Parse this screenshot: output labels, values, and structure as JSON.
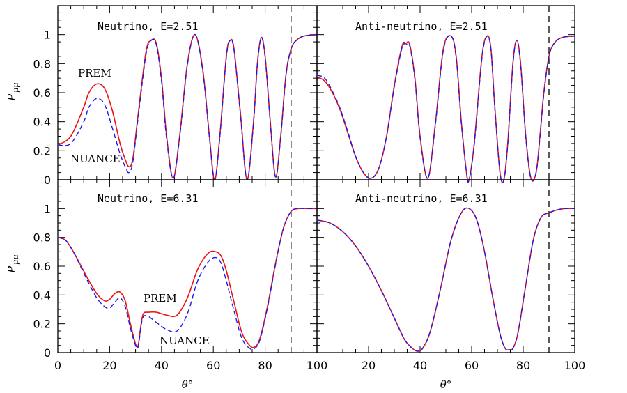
{
  "chart_data": [
    {
      "type": "line",
      "title": "Neutrino, E=2.51",
      "xlabel": "",
      "ylabel": "P_μμ",
      "xlim": [
        0,
        100
      ],
      "ylim": [
        0,
        1.2
      ],
      "yticks": [
        "0",
        "0.2",
        "0.4",
        "0.6",
        "0.8",
        "1"
      ],
      "xticks": [],
      "vline_x": 90,
      "annotations": [
        {
          "text": "PREM"
        },
        {
          "text": "NUANCE"
        }
      ],
      "series": [
        {
          "name": "PREM",
          "color": "#ee1111",
          "style": "solid",
          "x": [
            0,
            5,
            10,
            12,
            15,
            18,
            21,
            24,
            26,
            27.5,
            29,
            31,
            34,
            36,
            38,
            40,
            42,
            44.5,
            47,
            50,
            53,
            56,
            58.5,
            60.5,
            62.5,
            65,
            66.5,
            68,
            70.5,
            73,
            75.5,
            77,
            78.5,
            80,
            82,
            84,
            86,
            88,
            90,
            92,
            95,
            100
          ],
          "y": [
            0.24,
            0.3,
            0.5,
            0.6,
            0.66,
            0.63,
            0.48,
            0.25,
            0.14,
            0.09,
            0.15,
            0.45,
            0.88,
            0.96,
            0.94,
            0.7,
            0.3,
            0.01,
            0.3,
            0.8,
            1.0,
            0.75,
            0.3,
            0.0,
            0.3,
            0.85,
            0.96,
            0.9,
            0.45,
            0.0,
            0.4,
            0.8,
            0.98,
            0.85,
            0.4,
            0.02,
            0.3,
            0.72,
            0.9,
            0.96,
            0.99,
            1.0
          ]
        },
        {
          "name": "NUANCE",
          "color": "#1a1aee",
          "style": "dashed",
          "x": [
            0,
            5,
            10,
            12,
            15,
            18,
            21,
            24,
            26,
            27.5,
            29,
            31,
            34,
            36,
            38,
            40,
            42,
            44.5,
            47,
            50,
            53,
            56,
            58.5,
            60.5,
            62.5,
            65,
            66.5,
            68,
            70.5,
            73,
            75.5,
            77,
            78.5,
            80,
            82,
            84,
            86,
            88,
            90,
            92,
            95,
            100
          ],
          "y": [
            0.24,
            0.25,
            0.4,
            0.5,
            0.56,
            0.52,
            0.36,
            0.18,
            0.09,
            0.05,
            0.13,
            0.43,
            0.86,
            0.96,
            0.93,
            0.68,
            0.28,
            0.01,
            0.29,
            0.79,
            1.0,
            0.74,
            0.29,
            0.0,
            0.29,
            0.84,
            0.96,
            0.89,
            0.44,
            0.0,
            0.39,
            0.79,
            0.98,
            0.84,
            0.39,
            0.02,
            0.29,
            0.71,
            0.9,
            0.96,
            0.99,
            1.0
          ]
        }
      ]
    },
    {
      "type": "line",
      "title": "Anti-neutrino, E=2.51",
      "xlabel": "",
      "ylabel": "",
      "xlim": [
        0,
        100
      ],
      "ylim": [
        0,
        1.2
      ],
      "yticks": [],
      "xticks": [],
      "vline_x": 90,
      "annotations": [],
      "series": [
        {
          "name": "PREM",
          "color": "#ee1111",
          "style": "solid",
          "x": [
            0,
            3,
            6,
            9,
            12,
            15,
            18,
            21,
            24,
            27,
            30,
            33,
            34.5,
            36,
            38,
            40,
            43,
            46,
            49,
            52,
            54,
            56,
            58,
            59,
            61,
            64,
            66,
            67.5,
            69,
            71,
            72.5,
            74,
            76,
            77.5,
            79,
            81,
            83,
            85,
            86.5,
            88,
            90,
            92,
            95,
            100
          ],
          "y": [
            0.71,
            0.68,
            0.6,
            0.48,
            0.32,
            0.16,
            0.05,
            0.01,
            0.08,
            0.3,
            0.65,
            0.92,
            0.94,
            0.93,
            0.7,
            0.3,
            0.01,
            0.4,
            0.9,
            0.99,
            0.85,
            0.4,
            0.05,
            0.0,
            0.25,
            0.85,
            0.99,
            0.9,
            0.5,
            0.05,
            0.0,
            0.25,
            0.8,
            0.96,
            0.8,
            0.3,
            0.01,
            0.05,
            0.3,
            0.6,
            0.85,
            0.94,
            0.98,
            0.99
          ]
        },
        {
          "name": "NUANCE",
          "color": "#1a1aee",
          "style": "dashed",
          "x": [
            0,
            3,
            6,
            9,
            12,
            15,
            18,
            21,
            24,
            27,
            30,
            33,
            34.5,
            36,
            38,
            40,
            43,
            46,
            49,
            52,
            54,
            56,
            58,
            59,
            61,
            64,
            66,
            67.5,
            69,
            71,
            72.5,
            74,
            76,
            77.5,
            79,
            81,
            83,
            85,
            86.5,
            88,
            90,
            92,
            95,
            100
          ],
          "y": [
            0.72,
            0.7,
            0.61,
            0.49,
            0.33,
            0.16,
            0.05,
            0.01,
            0.08,
            0.3,
            0.64,
            0.91,
            0.93,
            0.92,
            0.69,
            0.29,
            0.01,
            0.39,
            0.89,
            0.99,
            0.84,
            0.39,
            0.05,
            0.0,
            0.24,
            0.84,
            0.99,
            0.89,
            0.49,
            0.05,
            0.0,
            0.24,
            0.79,
            0.96,
            0.79,
            0.29,
            0.01,
            0.05,
            0.29,
            0.59,
            0.85,
            0.94,
            0.98,
            0.99
          ]
        }
      ]
    },
    {
      "type": "line",
      "title": "Neutrino, E=6.31",
      "xlabel": "θ°",
      "ylabel": "P_μμ",
      "xlim": [
        0,
        100
      ],
      "ylim": [
        0,
        1.2
      ],
      "yticks": [
        "0",
        "0.2",
        "0.4",
        "0.6",
        "0.8",
        "1"
      ],
      "xticks": [
        "0",
        "20",
        "40",
        "60",
        "80",
        "100"
      ],
      "vline_x": 90,
      "annotations": [
        {
          "text": "PREM"
        },
        {
          "text": "NUANCE"
        }
      ],
      "series": [
        {
          "name": "PREM",
          "color": "#ee1111",
          "style": "solid",
          "x": [
            0,
            3,
            6,
            9,
            12,
            15,
            18,
            20,
            22,
            24,
            26,
            28,
            30,
            31,
            32,
            33,
            35,
            38,
            42,
            46,
            50,
            54,
            58,
            61,
            63,
            65,
            68,
            71,
            74,
            76,
            78,
            81,
            84,
            87,
            90,
            93,
            96,
            100
          ],
          "y": [
            0.8,
            0.78,
            0.7,
            0.6,
            0.5,
            0.41,
            0.36,
            0.37,
            0.41,
            0.42,
            0.36,
            0.2,
            0.06,
            0.05,
            0.18,
            0.27,
            0.28,
            0.28,
            0.26,
            0.26,
            0.38,
            0.58,
            0.69,
            0.7,
            0.67,
            0.57,
            0.35,
            0.14,
            0.05,
            0.04,
            0.1,
            0.33,
            0.62,
            0.86,
            0.98,
            1.0,
            1.0,
            1.0
          ]
        },
        {
          "name": "NUANCE",
          "color": "#1a1aee",
          "style": "dashed",
          "x": [
            0,
            3,
            6,
            9,
            12,
            15,
            18,
            20,
            22,
            24,
            26,
            28,
            30,
            31,
            32,
            33,
            35,
            38,
            42,
            46,
            50,
            54,
            58,
            61,
            63,
            65,
            68,
            71,
            74,
            76,
            78,
            81,
            84,
            87,
            90,
            93,
            96,
            100
          ],
          "y": [
            0.8,
            0.78,
            0.7,
            0.59,
            0.48,
            0.38,
            0.32,
            0.31,
            0.35,
            0.38,
            0.32,
            0.17,
            0.05,
            0.04,
            0.17,
            0.25,
            0.25,
            0.21,
            0.16,
            0.15,
            0.27,
            0.5,
            0.63,
            0.66,
            0.62,
            0.5,
            0.29,
            0.1,
            0.03,
            0.03,
            0.09,
            0.32,
            0.61,
            0.86,
            0.98,
            1.0,
            1.0,
            1.0
          ]
        }
      ]
    },
    {
      "type": "line",
      "title": "Anti-neutrino, E=6.31",
      "xlabel": "θ°",
      "ylabel": "",
      "xlim": [
        0,
        100
      ],
      "ylim": [
        0,
        1.2
      ],
      "yticks": [],
      "xticks": [
        "20",
        "40",
        "60",
        "80",
        "100"
      ],
      "vline_x": 90,
      "annotations": [],
      "series": [
        {
          "name": "PREM",
          "color": "#ee1111",
          "style": "solid",
          "x": [
            0,
            5,
            10,
            15,
            20,
            25,
            30,
            34,
            37,
            39,
            41,
            44,
            48,
            52,
            56,
            59,
            62,
            65,
            68,
            71,
            73,
            74.5,
            76,
            78,
            81,
            84,
            87,
            90,
            93,
            96,
            100
          ],
          "y": [
            0.92,
            0.9,
            0.84,
            0.74,
            0.6,
            0.43,
            0.24,
            0.09,
            0.03,
            0.01,
            0.03,
            0.15,
            0.45,
            0.78,
            0.97,
            1.0,
            0.92,
            0.7,
            0.4,
            0.13,
            0.03,
            0.02,
            0.03,
            0.14,
            0.47,
            0.79,
            0.94,
            0.97,
            0.99,
            1.0,
            1.0
          ]
        },
        {
          "name": "NUANCE",
          "color": "#1a1aee",
          "style": "dashed",
          "x": [
            0,
            5,
            10,
            15,
            20,
            25,
            30,
            34,
            37,
            39,
            41,
            44,
            48,
            52,
            56,
            59,
            62,
            65,
            68,
            71,
            73,
            74.5,
            76,
            78,
            81,
            84,
            87,
            90,
            93,
            96,
            100
          ],
          "y": [
            0.92,
            0.9,
            0.84,
            0.74,
            0.6,
            0.43,
            0.24,
            0.09,
            0.03,
            0.01,
            0.03,
            0.15,
            0.45,
            0.78,
            0.97,
            1.0,
            0.92,
            0.7,
            0.4,
            0.13,
            0.03,
            0.02,
            0.03,
            0.14,
            0.47,
            0.79,
            0.94,
            0.97,
            0.99,
            1.0,
            1.0
          ]
        }
      ]
    }
  ]
}
